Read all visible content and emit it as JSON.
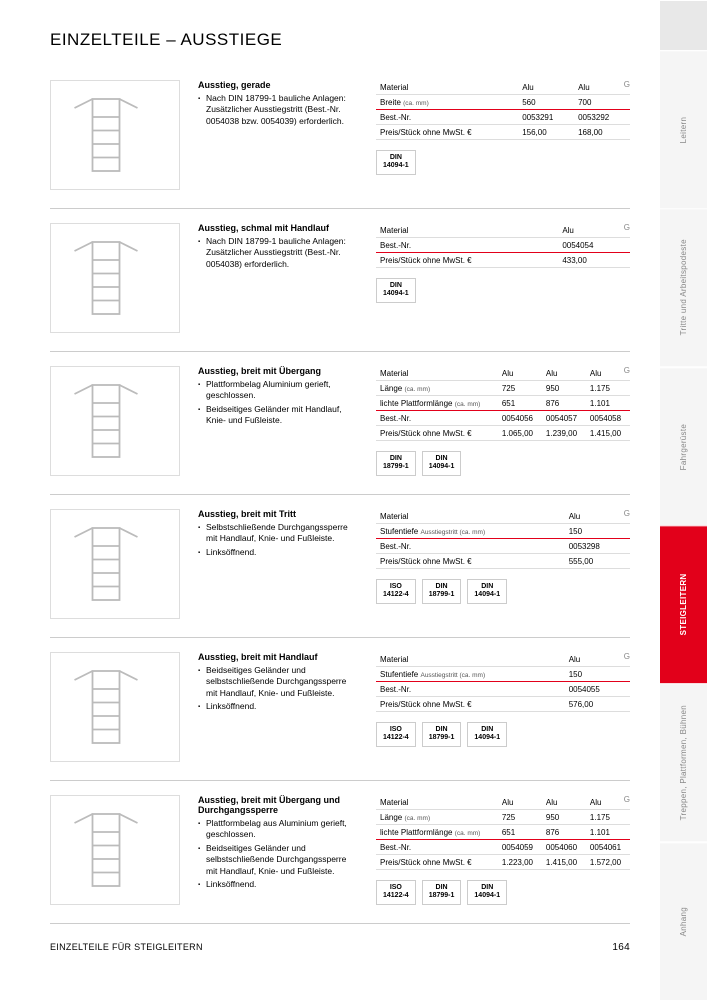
{
  "pageTitle": "EINZELTEILE – AUSSTIEGE",
  "footerLeft": "EINZELTEILE FÜR STEIGLEITERN",
  "footerRight": "164",
  "colors": {
    "accent": "#e2001a",
    "border": "#ddd",
    "text": "#000",
    "muted": "#888",
    "sidebarBg": "#f5f5f5"
  },
  "sidebar": [
    {
      "label": "",
      "active": false
    },
    {
      "label": "Leitern",
      "active": false
    },
    {
      "label": "Tritte und Arbeitspodeste",
      "active": false
    },
    {
      "label": "Fahrgerüste",
      "active": false
    },
    {
      "label": "STEIGLEITERN",
      "active": true
    },
    {
      "label": "Treppen, Plattformen, Bühnen",
      "active": false
    },
    {
      "label": "Anhang",
      "active": false
    }
  ],
  "products": [
    {
      "title": "Ausstieg, gerade",
      "bullets": [
        "Nach DIN 18799-1 bauliche Anlagen: Zusätzlicher Ausstiegstritt (Best.-Nr. 0054038 bzw. 0054039) erforderlich."
      ],
      "table": {
        "rows": [
          {
            "label": "Material",
            "sub": "",
            "vals": [
              "Alu",
              "Alu"
            ],
            "hl": false
          },
          {
            "label": "Breite",
            "sub": "(ca. mm)",
            "vals": [
              "560",
              "700"
            ],
            "hl": true
          },
          {
            "label": "Best.-Nr.",
            "sub": "",
            "vals": [
              "0053291",
              "0053292"
            ],
            "hl": false
          },
          {
            "label": "Preis/Stück ohne MwSt. €",
            "sub": "",
            "vals": [
              "156,00",
              "168,00"
            ],
            "hl": false
          }
        ]
      },
      "badges": [
        "DIN\n14094-1"
      ]
    },
    {
      "title": "Ausstieg, schmal mit Handlauf",
      "bullets": [
        "Nach DIN 18799-1 bauliche Anlagen: Zusätzlicher Ausstiegstritt (Best.-Nr. 0054038) erforderlich."
      ],
      "table": {
        "rows": [
          {
            "label": "Material",
            "sub": "",
            "vals": [
              "Alu"
            ],
            "hl": false
          },
          {
            "label": "Best.-Nr.",
            "sub": "",
            "vals": [
              "0054054"
            ],
            "hl": true
          },
          {
            "label": "Preis/Stück ohne MwSt. €",
            "sub": "",
            "vals": [
              "433,00"
            ],
            "hl": false
          }
        ]
      },
      "badges": [
        "DIN\n14094-1"
      ]
    },
    {
      "title": "Ausstieg, breit mit Übergang",
      "bullets": [
        "Plattformbelag Aluminium gerieft, geschlossen.",
        "Beidseitiges Geländer mit Handlauf, Knie- und Fußleiste."
      ],
      "table": {
        "rows": [
          {
            "label": "Material",
            "sub": "",
            "vals": [
              "Alu",
              "Alu",
              "Alu"
            ],
            "hl": false
          },
          {
            "label": "Länge",
            "sub": "(ca. mm)",
            "vals": [
              "725",
              "950",
              "1.175"
            ],
            "hl": false
          },
          {
            "label": "lichte Plattformlänge",
            "sub": "(ca. mm)",
            "vals": [
              "651",
              "876",
              "1.101"
            ],
            "hl": true
          },
          {
            "label": "Best.-Nr.",
            "sub": "",
            "vals": [
              "0054056",
              "0054057",
              "0054058"
            ],
            "hl": false
          },
          {
            "label": "Preis/Stück ohne MwSt. €",
            "sub": "",
            "vals": [
              "1.065,00",
              "1.239,00",
              "1.415,00"
            ],
            "hl": false
          }
        ]
      },
      "badges": [
        "DIN\n18799-1",
        "DIN\n14094-1"
      ]
    },
    {
      "title": "Ausstieg, breit mit Tritt",
      "bullets": [
        "Selbstschließende Durchgangssperre mit Handlauf, Knie- und Fußleiste.",
        "Linksöffnend."
      ],
      "table": {
        "rows": [
          {
            "label": "Material",
            "sub": "",
            "vals": [
              "Alu"
            ],
            "hl": false
          },
          {
            "label": "Stufentiefe",
            "sub": "Ausstiegstritt (ca. mm)",
            "vals": [
              "150"
            ],
            "hl": true
          },
          {
            "label": "Best.-Nr.",
            "sub": "",
            "vals": [
              "0053298"
            ],
            "hl": false
          },
          {
            "label": "Preis/Stück ohne MwSt. €",
            "sub": "",
            "vals": [
              "555,00"
            ],
            "hl": false
          }
        ]
      },
      "badges": [
        "ISO\n14122-4",
        "DIN\n18799-1",
        "DIN\n14094-1"
      ]
    },
    {
      "title": "Ausstieg, breit mit Handlauf",
      "bullets": [
        "Beidseitiges Geländer und selbstschließende Durchgangssperre mit Handlauf, Knie- und Fußleiste.",
        "Linksöffnend."
      ],
      "table": {
        "rows": [
          {
            "label": "Material",
            "sub": "",
            "vals": [
              "Alu"
            ],
            "hl": false
          },
          {
            "label": "Stufentiefe",
            "sub": "Ausstiegstritt (ca. mm)",
            "vals": [
              "150"
            ],
            "hl": true
          },
          {
            "label": "Best.-Nr.",
            "sub": "",
            "vals": [
              "0054055"
            ],
            "hl": false
          },
          {
            "label": "Preis/Stück ohne MwSt. €",
            "sub": "",
            "vals": [
              "576,00"
            ],
            "hl": false
          }
        ]
      },
      "badges": [
        "ISO\n14122-4",
        "DIN\n18799-1",
        "DIN\n14094-1"
      ]
    },
    {
      "title": "Ausstieg, breit mit Übergang und Durchgangssperre",
      "bullets": [
        "Plattformbelag aus Aluminium gerieft, geschlossen.",
        "Beidseitiges Geländer und selbstschließende Durchgangssperre mit Handlauf, Knie- und Fußleiste.",
        "Linksöffnend."
      ],
      "table": {
        "rows": [
          {
            "label": "Material",
            "sub": "",
            "vals": [
              "Alu",
              "Alu",
              "Alu"
            ],
            "hl": false
          },
          {
            "label": "Länge",
            "sub": "(ca. mm)",
            "vals": [
              "725",
              "950",
              "1.175"
            ],
            "hl": false
          },
          {
            "label": "lichte Plattformlänge",
            "sub": "(ca. mm)",
            "vals": [
              "651",
              "876",
              "1.101"
            ],
            "hl": true
          },
          {
            "label": "Best.-Nr.",
            "sub": "",
            "vals": [
              "0054059",
              "0054060",
              "0054061"
            ],
            "hl": false
          },
          {
            "label": "Preis/Stück ohne MwSt. €",
            "sub": "",
            "vals": [
              "1.223,00",
              "1.415,00",
              "1.572,00"
            ],
            "hl": false
          }
        ]
      },
      "badges": [
        "ISO\n14122-4",
        "DIN\n18799-1",
        "DIN\n14094-1"
      ]
    }
  ]
}
